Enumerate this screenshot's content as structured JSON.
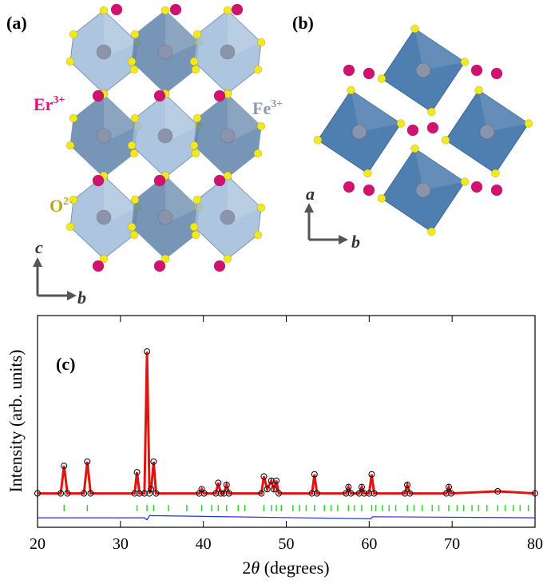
{
  "panels": {
    "a": {
      "label": "(a)",
      "er_ion": "Er",
      "er_charge": "3+",
      "fe_ion": "Fe",
      "fe_charge": "3+",
      "o_ion": "O",
      "o_charge": "2-",
      "axis_up": "c",
      "axis_right": "b"
    },
    "b": {
      "label": "(b)",
      "axis_up": "a",
      "axis_right": "b"
    },
    "c": {
      "label": "(c)"
    }
  },
  "chart_data": {
    "type": "line",
    "y_label": "Intensity (arb. units)",
    "x_label_prefix": "2",
    "x_label_symbol": "θ",
    "x_label_suffix": " (degrees)",
    "xlim": [
      20,
      80
    ],
    "xticks": [
      20,
      30,
      40,
      50,
      60,
      70,
      80
    ],
    "ylim": [
      0,
      100
    ],
    "series": [
      {
        "color": "#e0140e",
        "x": [
          20,
          22.8,
          23.2,
          23.6,
          25.6,
          26.0,
          26.4,
          31.7,
          32.0,
          32.3,
          32.9,
          33.2,
          33.5,
          33.7,
          34.0,
          34.3,
          39.5,
          39.8,
          40.1,
          41.5,
          41.8,
          42.1,
          42.5,
          42.8,
          43.1,
          47.0,
          47.3,
          47.7,
          48.2,
          48.5,
          48.8,
          49.1,
          53.1,
          53.4,
          53.7,
          57.2,
          57.5,
          57.8,
          58.8,
          59.1,
          59.4,
          60.0,
          60.3,
          60.6,
          64.3,
          64.6,
          64.9,
          69.3,
          69.6,
          69.9,
          75.5,
          80
        ],
        "values": [
          16,
          16,
          29,
          16,
          16,
          31,
          16,
          16,
          26,
          16,
          16,
          83,
          16,
          18,
          31,
          16,
          16,
          18,
          16,
          16,
          21,
          16,
          16,
          20,
          16,
          16,
          24,
          18,
          22,
          18,
          22,
          16,
          16,
          25,
          16,
          16,
          19,
          16,
          16,
          19,
          16,
          16,
          25,
          16,
          16,
          20,
          16,
          16,
          19,
          16,
          17,
          16
        ]
      }
    ],
    "bragg_color": "#22dd22",
    "bragg_level": 9,
    "bragg_positions": [
      23.2,
      26.0,
      32.0,
      33.2,
      34.0,
      35.8,
      38.0,
      39.8,
      41.0,
      41.8,
      42.8,
      44.2,
      45.0,
      47.3,
      48.2,
      48.8,
      49.4,
      50.8,
      51.6,
      52.4,
      53.4,
      54.6,
      55.4,
      56.2,
      57.5,
      58.2,
      59.1,
      60.3,
      60.8,
      61.6,
      62.4,
      63.2,
      64.6,
      65.4,
      66.4,
      67.6,
      68.4,
      69.6,
      70.6,
      71.4,
      72.4,
      73.2,
      74.2,
      75.5,
      76.4,
      77.4,
      78.2,
      79.2
    ],
    "difference": {
      "color": "#2030dd",
      "x": [
        20,
        32.9,
        33.2,
        33.5,
        60.2,
        60.4,
        80
      ],
      "values": [
        4.5,
        4.5,
        3.5,
        5.5,
        4,
        5,
        4.5
      ]
    }
  }
}
